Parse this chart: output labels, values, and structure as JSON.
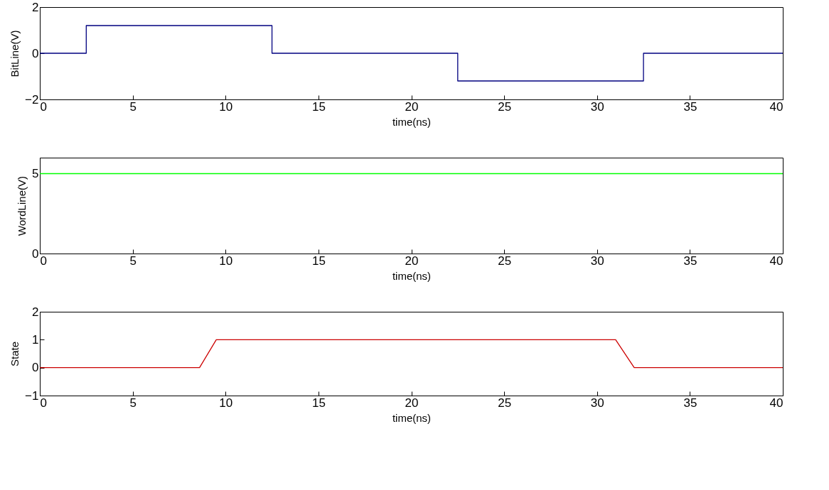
{
  "chart_data": [
    {
      "type": "step",
      "xlabel": "time(ns)",
      "ylabel": "BitLine(V)",
      "xlim": [
        0,
        40
      ],
      "xticks": [
        0,
        5,
        10,
        15,
        20,
        25,
        30,
        35,
        40
      ],
      "ylim": [
        -2,
        2
      ],
      "yticks": [
        -2,
        0,
        2
      ],
      "series": [
        {
          "color": "#000080",
          "x": [
            0,
            2.5,
            12.5,
            22.5,
            32.5,
            40
          ],
          "values": [
            0,
            1.2,
            0,
            -1.2,
            0,
            0
          ]
        }
      ]
    },
    {
      "type": "line",
      "xlabel": "time(ns)",
      "ylabel": "WordLine(V)",
      "xlim": [
        0,
        40
      ],
      "xticks": [
        0,
        5,
        10,
        15,
        20,
        25,
        30,
        35,
        40
      ],
      "ylim": [
        0,
        6
      ],
      "yticks": [
        0,
        5
      ],
      "series": [
        {
          "color": "#00ff00",
          "x": [
            0,
            40
          ],
          "values": [
            5,
            5
          ]
        }
      ]
    },
    {
      "type": "line",
      "xlabel": "time(ns)",
      "ylabel": "State",
      "xlim": [
        0,
        40
      ],
      "xticks": [
        0,
        5,
        10,
        15,
        20,
        25,
        30,
        35,
        40
      ],
      "ylim": [
        -1,
        2
      ],
      "yticks": [
        -1,
        0,
        1,
        2
      ],
      "series": [
        {
          "color": "#cc0000",
          "x": [
            0,
            8.6,
            9.5,
            31,
            32,
            40
          ],
          "values": [
            0,
            0,
            1,
            1,
            0,
            0
          ]
        }
      ]
    }
  ]
}
